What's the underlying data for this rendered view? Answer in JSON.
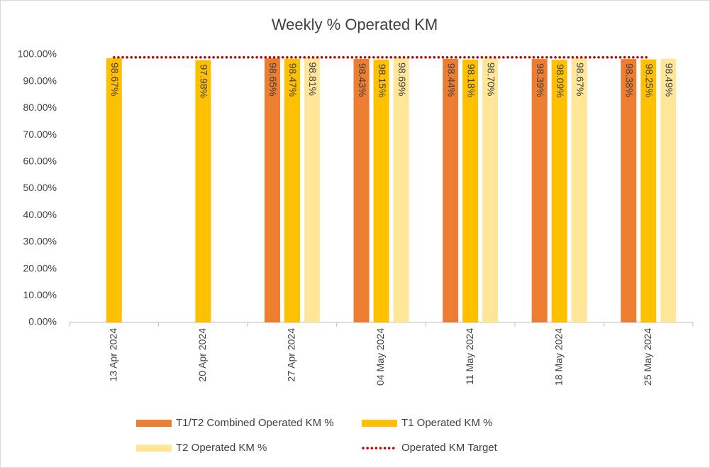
{
  "chart_data": {
    "type": "bar",
    "title": "Weekly % Operated KM",
    "categories": [
      "13 Apr 2024",
      "20 Apr 2024",
      "27 Apr 2024",
      "04 May 2024",
      "11 May 2024",
      "18 May 2024",
      "25 May 2024"
    ],
    "series": [
      {
        "name": "T1/T2 Combined Operated KM %",
        "color": "#ed7d31",
        "values": [
          null,
          null,
          98.65,
          98.43,
          98.44,
          98.39,
          98.38
        ],
        "value_labels": [
          null,
          null,
          "98.65%",
          "98.43%",
          "98.44%",
          "98.39%",
          "98.38%"
        ]
      },
      {
        "name": "T1 Operated KM %",
        "color": "#ffc000",
        "values": [
          98.67,
          97.98,
          98.47,
          98.15,
          98.18,
          98.09,
          98.25
        ],
        "value_labels": [
          "98.67%",
          "97.98%",
          "98.47%",
          "98.15%",
          "98.18%",
          "98.09%",
          "98.25%"
        ]
      },
      {
        "name": "T2 Operated KM %",
        "color": "#ffe699",
        "values": [
          null,
          null,
          98.81,
          98.69,
          98.7,
          98.67,
          98.49
        ],
        "value_labels": [
          null,
          null,
          "98.81%",
          "98.69%",
          "98.70%",
          "98.67%",
          "98.49%"
        ]
      },
      {
        "name": "Operated KM Target",
        "color": "#c00000",
        "type": "line",
        "line_style": "dotted",
        "values": [
          99,
          99,
          99,
          99,
          99,
          99,
          99
        ]
      }
    ],
    "ylim": [
      0,
      100
    ],
    "yticks": [
      {
        "value": 0,
        "label": "0.00%"
      },
      {
        "value": 10,
        "label": "10.00%"
      },
      {
        "value": 20,
        "label": "20.00%"
      },
      {
        "value": 30,
        "label": "30.00%"
      },
      {
        "value": 40,
        "label": "40.00%"
      },
      {
        "value": 50,
        "label": "50.00%"
      },
      {
        "value": 60,
        "label": "60.00%"
      },
      {
        "value": 70,
        "label": "70.00%"
      },
      {
        "value": 80,
        "label": "80.00%"
      },
      {
        "value": 90,
        "label": "90.00%"
      },
      {
        "value": 100,
        "label": "100.00%"
      }
    ],
    "grid": false,
    "legend": "bottom"
  }
}
